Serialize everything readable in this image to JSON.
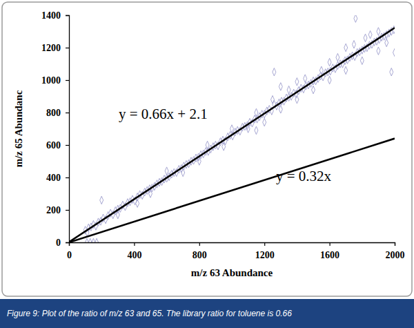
{
  "chart_data": {
    "type": "scatter",
    "x_label": "m/z 63 Abundance",
    "y_label": "m/z 65 Abundanc",
    "caption": "Figure 9: Plot of the ratio of m/z 63 and 65.  The library ratio for toluene is 0.66",
    "annotations": [
      "y = 0.66x + 2.1",
      "y = 0.32x"
    ],
    "xlim": [
      0,
      2000
    ],
    "ylim": [
      0,
      1400
    ],
    "xticks": [
      0,
      400,
      800,
      1200,
      1600,
      2000
    ],
    "yticks": [
      0,
      200,
      400,
      600,
      800,
      1000,
      1200,
      1400
    ],
    "grid": false,
    "series": [
      {
        "type": "scatter",
        "marker": "diamond",
        "color": "#9b9bcb",
        "x": [
          100,
          112,
          120,
          135,
          150,
          165,
          180,
          195,
          210,
          225,
          240,
          255,
          270,
          285,
          300,
          315,
          330,
          345,
          360,
          375,
          390,
          405,
          420,
          435,
          450,
          465,
          480,
          495,
          510,
          525,
          540,
          555,
          570,
          585,
          600,
          615,
          630,
          645,
          660,
          675,
          690,
          705,
          720,
          735,
          750,
          765,
          780,
          795,
          810,
          825,
          840,
          855,
          870,
          885,
          900,
          915,
          930,
          945,
          960,
          975,
          990,
          1005,
          1020,
          1035,
          1050,
          1065,
          1080,
          1095,
          1110,
          1125,
          1140,
          1155,
          1170,
          1185,
          1200,
          1215,
          1230,
          1245,
          1260,
          1275,
          1290,
          1305,
          1320,
          1335,
          1350,
          1365,
          1380,
          1395,
          1410,
          1425,
          1440,
          1455,
          1470,
          1485,
          1500,
          1515,
          1530,
          1545,
          1560,
          1575,
          1590,
          1605,
          1620,
          1635,
          1650,
          1665,
          1680,
          1695,
          1710,
          1725,
          1740,
          1755,
          1770,
          1785,
          1800,
          1815,
          1830,
          1845,
          1860,
          1875,
          1890,
          1905,
          1920,
          1935,
          1950,
          1965,
          1980,
          1995,
          300,
          420,
          500,
          600,
          700,
          800,
          850,
          950,
          1000,
          1100,
          1150,
          1200,
          1250,
          1300,
          1350,
          1400,
          1450,
          1500,
          1550,
          1600,
          1650,
          1700,
          1750,
          1760,
          1800,
          1850,
          1900,
          1950,
          1980,
          2000,
          1900,
          1820,
          1700,
          1600,
          1400,
          1300,
          1260,
          1150,
          200,
          110,
          130,
          150,
          170
        ],
        "values": [
          75,
          60,
          90,
          95,
          110,
          100,
          125,
          130,
          150,
          140,
          165,
          180,
          170,
          195,
          205,
          210,
          230,
          220,
          245,
          250,
          265,
          255,
          280,
          295,
          290,
          310,
          320,
          330,
          335,
          345,
          360,
          370,
          375,
          390,
          395,
          405,
          420,
          430,
          430,
          450,
          455,
          470,
          480,
          485,
          500,
          505,
          520,
          525,
          540,
          545,
          560,
          560,
          575,
          590,
          600,
          595,
          620,
          630,
          625,
          650,
          660,
          655,
          680,
          690,
          685,
          710,
          715,
          720,
          740,
          735,
          760,
          760,
          775,
          790,
          790,
          810,
          820,
          810,
          850,
          840,
          860,
          870,
          870,
          890,
          895,
          900,
          920,
          915,
          935,
          950,
          945,
          965,
          970,
          980,
          995,
          995,
          1010,
          1025,
          1020,
          1045,
          1050,
          1055,
          1075,
          1070,
          1090,
          1100,
          1100,
          1120,
          1125,
          1140,
          1150,
          1145,
          1170,
          1175,
          1185,
          1195,
          1200,
          1215,
          1220,
          1235,
          1240,
          1250,
          1265,
          1270,
          1280,
          1290,
          1300,
          1310,
          170,
          240,
          300,
          440,
          430,
          500,
          600,
          590,
          700,
          700,
          800,
          740,
          880,
          820,
          940,
          880,
          1010,
          940,
          1060,
          1000,
          1140,
          1060,
          1220,
          1380,
          1120,
          1280,
          1180,
          1230,
          1050,
          1170,
          1300,
          1260,
          1200,
          1110,
          990,
          960,
          1050,
          690,
          260,
          0,
          0,
          0,
          0
        ]
      },
      {
        "type": "line",
        "line_style": "solid",
        "color": "#000000",
        "x": [
          0,
          2000
        ],
        "values": [
          2.1,
          1322.1
        ]
      },
      {
        "type": "line",
        "line_style": "solid",
        "color": "#000000",
        "x": [
          0,
          2000
        ],
        "values": [
          0,
          640
        ]
      }
    ]
  }
}
